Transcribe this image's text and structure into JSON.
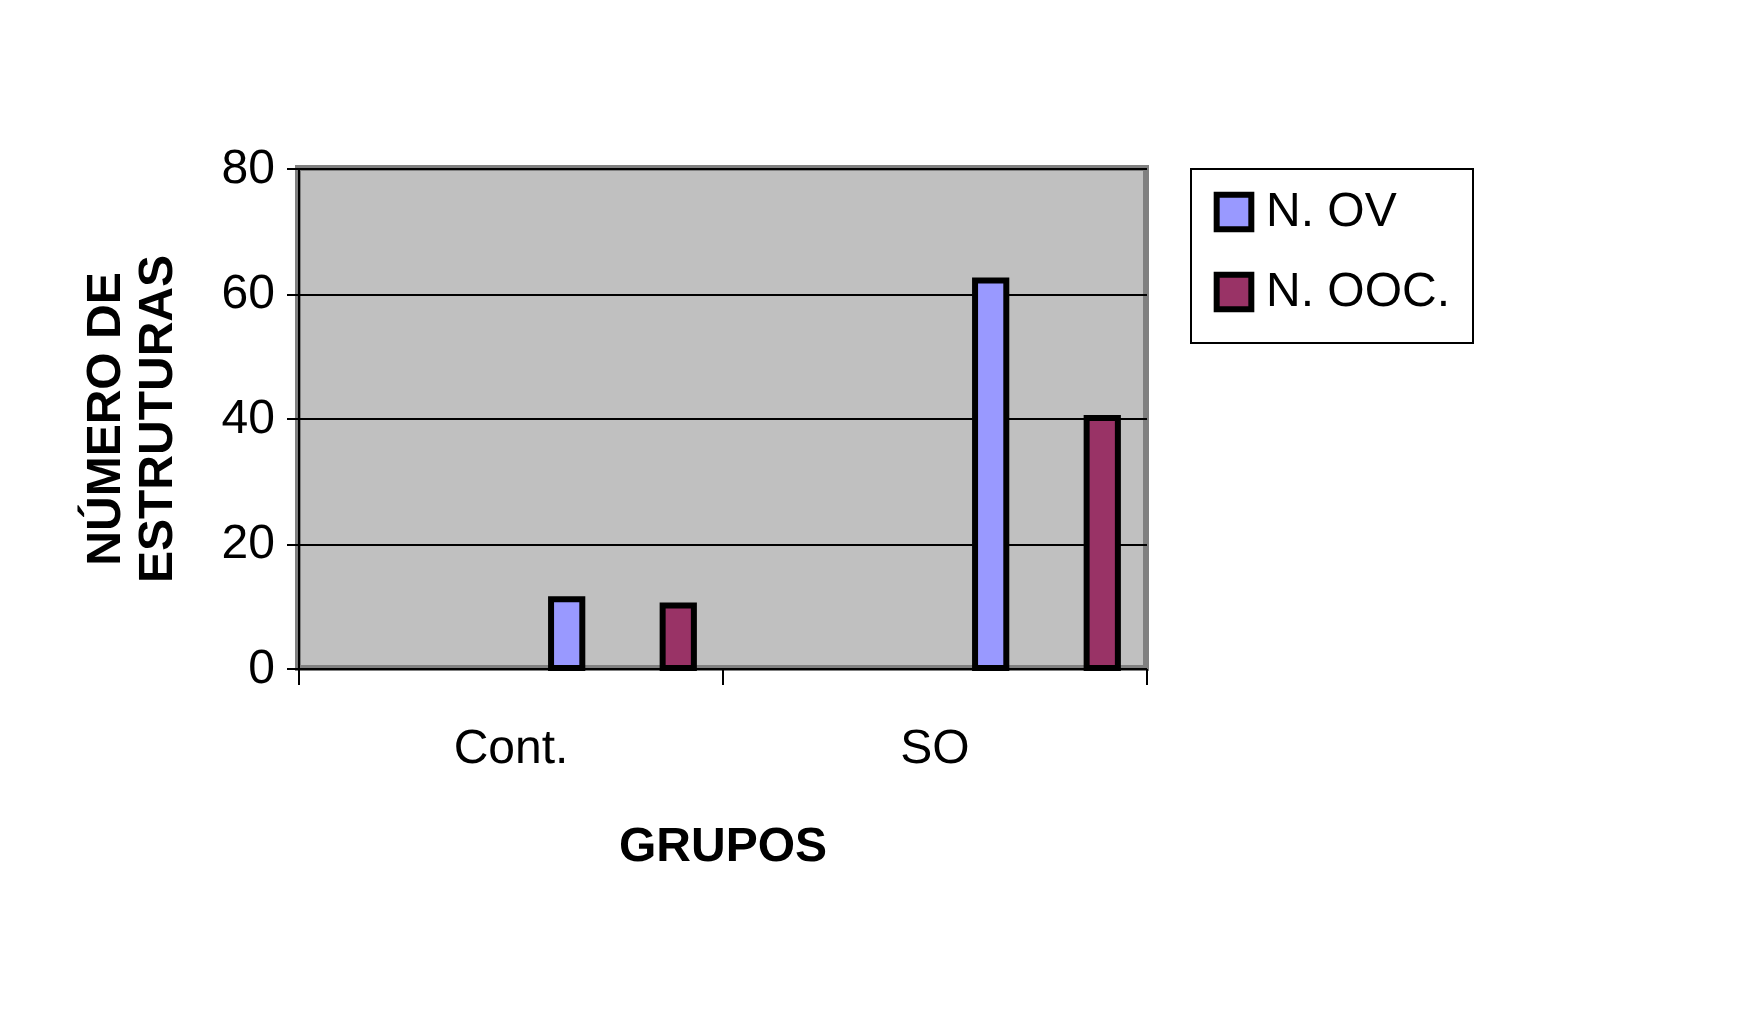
{
  "chart_data": {
    "type": "bar",
    "xlabel": "GRUPOS",
    "ylabel": "NÚMERO DE ESTRUTURAS",
    "categories": [
      "Cont.",
      "SO"
    ],
    "series": [
      {
        "name": "N. OV",
        "color": "#9999ff",
        "values": [
          11,
          62
        ]
      },
      {
        "name": "N. OOC.",
        "color": "#993366",
        "values": [
          10,
          40
        ]
      }
    ],
    "ylim": [
      0,
      80
    ],
    "yticks": [
      0,
      20,
      40,
      60,
      80
    ],
    "grid": "y",
    "legend": "right"
  }
}
